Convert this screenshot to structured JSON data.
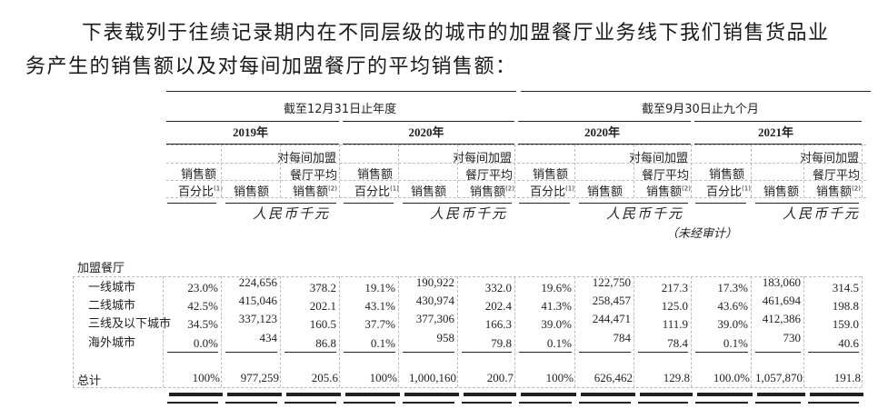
{
  "intro": {
    "line1": "下表载列于往绩记录期内在不同层级的城市的加盟餐厅业务线下我们销售货品业",
    "line2": "务产生的销售额以及对每间加盟餐厅的平均销售额："
  },
  "header": {
    "period_year": "截至12月31日止年度",
    "period_nine_months": "截至9月30日止九个月",
    "years": [
      "2019年",
      "2020年",
      "2020年",
      "2021年"
    ],
    "col_pct_line1": "销售额",
    "col_pct_line2": "百分比",
    "col_pct_note": "(1)",
    "col_sales": "销售额",
    "col_avg_line1": "对每间加盟",
    "col_avg_line2": "餐厅平均",
    "col_avg_line3": "销售额",
    "col_avg_note": "(2)",
    "currency": "人民币千元",
    "unaudited": "（未经审计）"
  },
  "table": {
    "section_label": "加盟餐厅",
    "rows": [
      {
        "label": "一线城市",
        "values": [
          "23.0%",
          "224,656",
          "378.2",
          "19.1%",
          "190,922",
          "332.0",
          "19.6%",
          "122,750",
          "217.3",
          "17.3%",
          "183,060",
          "314.5"
        ]
      },
      {
        "label": "二线城市",
        "values": [
          "42.5%",
          "415,046",
          "202.1",
          "43.1%",
          "430,974",
          "202.4",
          "41.3%",
          "258,457",
          "125.0",
          "43.6%",
          "461,694",
          "198.8"
        ]
      },
      {
        "label": "三线及以下城市",
        "values": [
          "34.5%",
          "337,123",
          "160.5",
          "37.7%",
          "377,306",
          "166.3",
          "39.0%",
          "244,471",
          "111.9",
          "39.0%",
          "412,386",
          "159.0"
        ]
      },
      {
        "label": "海外城市",
        "values": [
          "0.0%",
          "434",
          "86.8",
          "0.1%",
          "958",
          "79.8",
          "0.1%",
          "784",
          "78.4",
          "0.1%",
          "730",
          "40.6"
        ]
      }
    ],
    "total": {
      "label": "总计",
      "values": [
        "100%",
        "977,259",
        "205.6",
        "100%",
        "1,000,160",
        "200.7",
        "100%",
        "626,462",
        "129.8",
        "100.0%",
        "1,057,870",
        "191.8"
      ]
    }
  }
}
